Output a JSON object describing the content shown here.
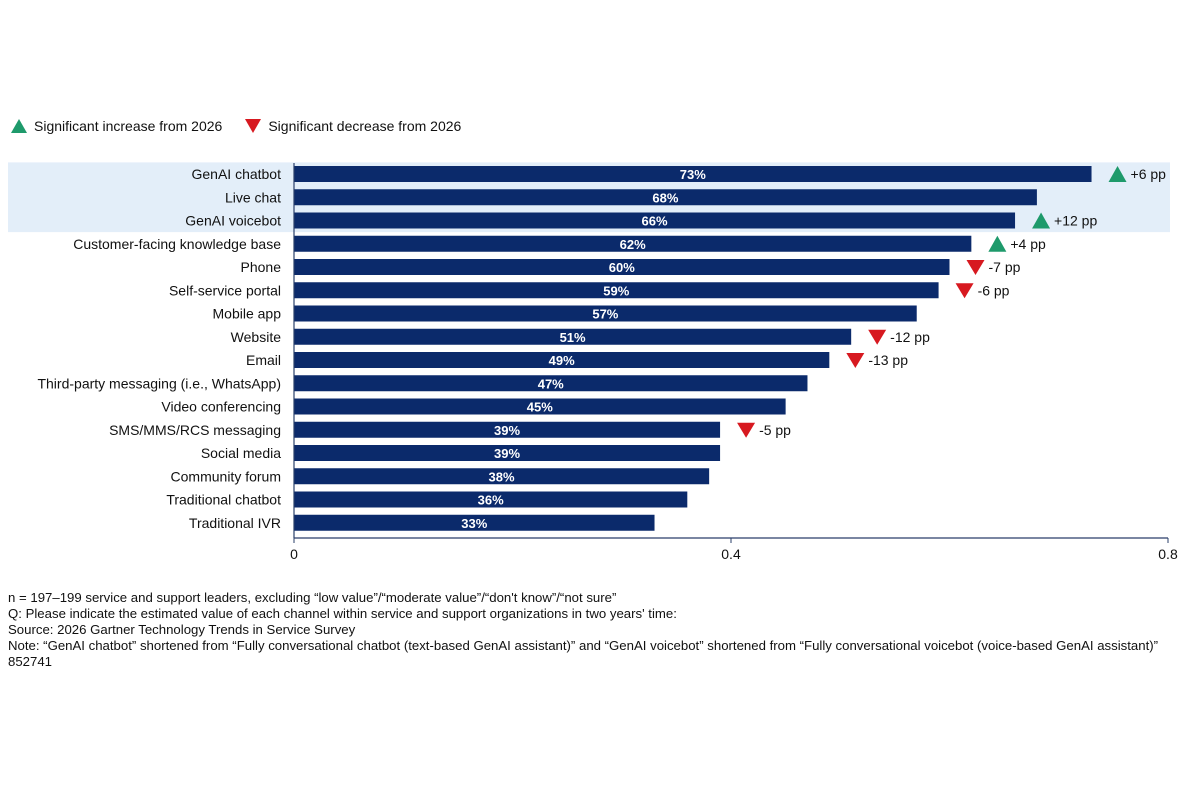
{
  "legend": {
    "increase_label": "Significant increase from 2026",
    "decrease_label": "Significant decrease from 2026"
  },
  "colors": {
    "bar": "#0b2a6b",
    "highlight": "#e3eef9",
    "increase": "#1e9a6b",
    "decrease": "#d71920",
    "axis": "#2a3f6a"
  },
  "chart_data": {
    "type": "bar",
    "orientation": "horizontal",
    "categories": [
      "GenAI chatbot",
      "Live chat",
      "GenAI voicebot",
      "Customer-facing knowledge base",
      "Phone",
      "Self-service portal",
      "Mobile app",
      "Website",
      "Email",
      "Third-party messaging (i.e., WhatsApp)",
      "Video conferencing",
      "SMS/MMS/RCS messaging",
      "Social media",
      "Community forum",
      "Traditional chatbot",
      "Traditional IVR"
    ],
    "values": [
      0.73,
      0.68,
      0.66,
      0.62,
      0.6,
      0.59,
      0.57,
      0.51,
      0.49,
      0.47,
      0.45,
      0.39,
      0.39,
      0.38,
      0.36,
      0.33
    ],
    "value_labels": [
      "73%",
      "68%",
      "66%",
      "62%",
      "60%",
      "59%",
      "57%",
      "51%",
      "49%",
      "47%",
      "45%",
      "39%",
      "39%",
      "38%",
      "36%",
      "33%"
    ],
    "changes": [
      {
        "category": "GenAI chatbot",
        "direction": "up",
        "label": "+6 pp"
      },
      {
        "category": "GenAI voicebot",
        "direction": "up",
        "label": "+12 pp"
      },
      {
        "category": "Customer-facing knowledge base",
        "direction": "up",
        "label": "+4 pp"
      },
      {
        "category": "Phone",
        "direction": "down",
        "label": "-7 pp"
      },
      {
        "category": "Self-service portal",
        "direction": "down",
        "label": "-6 pp"
      },
      {
        "category": "Website",
        "direction": "down",
        "label": "-12 pp"
      },
      {
        "category": "Email",
        "direction": "down",
        "label": "-13 pp"
      },
      {
        "category": "SMS/MMS/RCS messaging",
        "direction": "down",
        "label": "-5 pp"
      }
    ],
    "highlighted_categories": [
      "GenAI chatbot",
      "Live chat",
      "GenAI voicebot"
    ],
    "xlim": [
      0,
      0.8
    ],
    "xticks": [
      0,
      0.4,
      0.8
    ],
    "xtick_labels": [
      "0",
      "0.4",
      "0.8"
    ],
    "grid": false
  },
  "notes": {
    "n": "n = 197–199 service and support leaders, excluding “low value”/“moderate value”/“don't know”/“not sure”",
    "question": "Q: Please indicate the estimated value of each channel within service and support organizations in two years' time:",
    "source": "Source: 2026 Gartner Technology Trends in Service Survey",
    "note": "Note: “GenAI chatbot” shortened from “Fully conversational chatbot (text-based GenAI assistant)” and “GenAI voicebot” shortened from “Fully conversational voicebot (voice-based GenAI assistant)”",
    "id": "852741"
  }
}
